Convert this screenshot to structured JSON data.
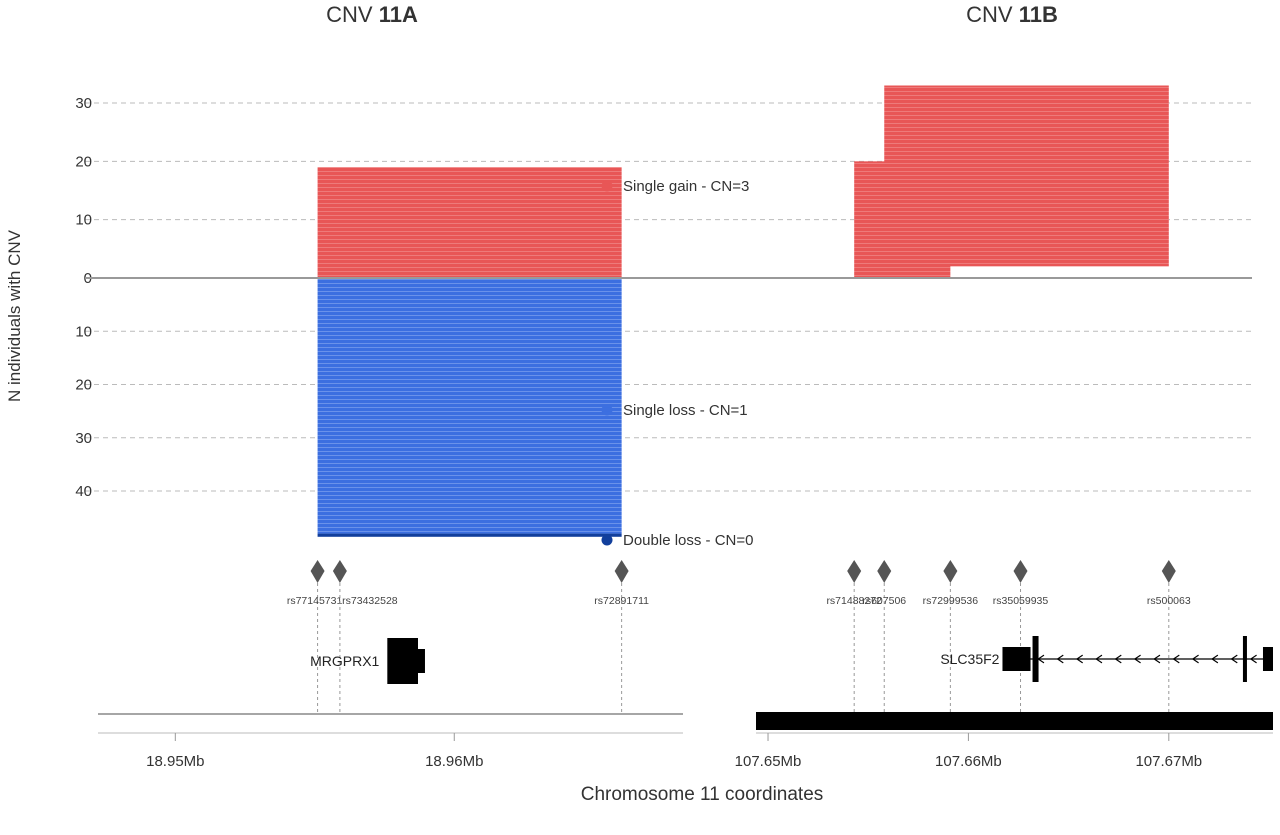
{
  "chart_data": {
    "type": "bar",
    "ylabel": "N individuals with CNV",
    "xlabel": "Chromosome 11 coordinates",
    "y_axis": {
      "ticks": [
        {
          "value": 30,
          "label": "30"
        },
        {
          "value": 20,
          "label": "20"
        },
        {
          "value": 10,
          "label": "10"
        },
        {
          "value": 0,
          "label": "0"
        },
        {
          "value": -10,
          "label": "10"
        },
        {
          "value": -20,
          "label": "20"
        },
        {
          "value": -30,
          "label": "30"
        },
        {
          "value": -40,
          "label": "40"
        }
      ],
      "range": [
        -49,
        33
      ],
      "grid": true
    },
    "legend": [
      {
        "label": "Single gain - CN=3",
        "color": "#e85656"
      },
      {
        "label": "Single loss - CN=1",
        "color": "#3c6fe0"
      },
      {
        "label": "Double loss - CN=0",
        "color": "#123f9c"
      }
    ],
    "panels": [
      {
        "id": "11A",
        "title_prefix": "CNV ",
        "title_bold": "11A",
        "x_range": [
          18.9473,
          18.9682
        ],
        "x_ticks": [
          {
            "value": 18.95,
            "label": "18.95Mb"
          },
          {
            "value": 18.96,
            "label": "18.96Mb"
          }
        ],
        "segments": [
          {
            "type": "gain",
            "start": 18.9551,
            "end": 18.966,
            "from": 0,
            "to": 19
          },
          {
            "type": "loss",
            "start": 18.9551,
            "end": 18.966,
            "from": 0,
            "to": -48
          },
          {
            "type": "double_loss",
            "start": 18.9551,
            "end": 18.966,
            "from": -48,
            "to": -48.6
          }
        ],
        "snps": [
          {
            "id": "rs77145731",
            "pos": 18.9551
          },
          {
            "id": "rs73432528",
            "pos": 18.9559
          },
          {
            "id": "rs72891711",
            "pos": 18.966
          }
        ],
        "gene": {
          "name": "MRGPRX1",
          "start": 18.9576,
          "end": 18.9587,
          "utr_end": 18.95895
        },
        "chromosome_bar": "line"
      },
      {
        "id": "11B",
        "title_prefix": "CNV ",
        "title_bold": "11B",
        "x_range": [
          107.6495,
          107.6752
        ],
        "x_ticks": [
          {
            "value": 107.65,
            "label": "107.65Mb"
          },
          {
            "value": 107.66,
            "label": "107.66Mb"
          },
          {
            "value": 107.67,
            "label": "107.67Mb"
          }
        ],
        "segments": [
          {
            "type": "gain",
            "start": 107.6543,
            "end": 107.6591,
            "from": 0,
            "to": 20
          },
          {
            "type": "gain",
            "start": 107.6558,
            "end": 107.67,
            "from": 2,
            "to": 33
          }
        ],
        "snps": [
          {
            "id": "rs71488272",
            "pos": 107.6543
          },
          {
            "id": "rs607506",
            "pos": 107.6558
          },
          {
            "id": "rs72999536",
            "pos": 107.6591
          },
          {
            "id": "rs35059935",
            "pos": 107.6626
          },
          {
            "id": "rs500063",
            "pos": 107.67
          }
        ],
        "gene": {
          "name": "SLC35F2",
          "start": 107.6617,
          "end": 107.6752,
          "strand": "-",
          "exons": [
            {
              "start": 107.6617,
              "end": 107.6631,
              "height": "large"
            },
            {
              "start": 107.6632,
              "end": 107.6635,
              "height": "tall"
            },
            {
              "start": 107.6737,
              "end": 107.6739,
              "height": "tall"
            },
            {
              "start": 107.6747,
              "end": 107.6752,
              "height": "large"
            }
          ]
        },
        "chromosome_bar": "thick"
      }
    ]
  }
}
